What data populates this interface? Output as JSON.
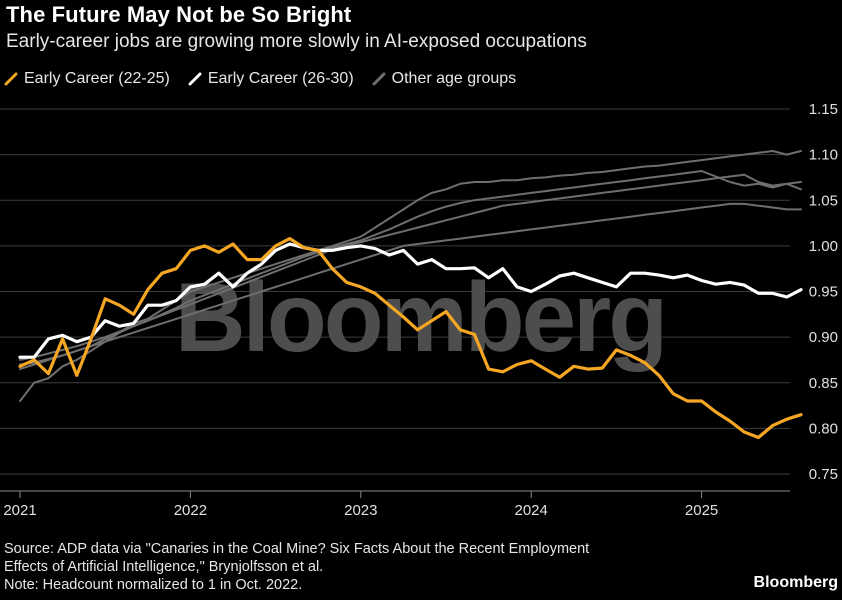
{
  "header": {
    "title": "The Future May Not be So Bright",
    "subtitle": "Early-career jobs are growing more slowly in AI-exposed occupations"
  },
  "colors": {
    "early_22_25": "#f5a623",
    "early_26_30": "#ffffff",
    "other": "#6e6e6e",
    "grid": "#3c3c3c",
    "watermark": "#4d4d4d"
  },
  "watermark": "Bloomberg",
  "footer": {
    "source_line1": "Source: ADP data via \"Canaries in the Coal Mine? Six Facts About the Recent Employment",
    "source_line2": "Effects of Artificial Intelligence,\" Brynjolfsson et al.",
    "note": "Note: Headcount normalized to 1 in Oct. 2022.",
    "brand": "Bloomberg"
  },
  "chart_data": {
    "type": "line",
    "title": "The Future May Not be So Bright",
    "subtitle": "Early-career jobs are growing more slowly in AI-exposed occupations",
    "xlabel": "",
    "ylabel": "",
    "x_start": "2021-01",
    "x_ticks": [
      "2021",
      "2022",
      "2023",
      "2024",
      "2025"
    ],
    "y_ticks": [
      "1.15",
      "1.10",
      "1.05",
      "1.00",
      "0.95",
      "0.90",
      "0.85",
      "0.80",
      "0.75"
    ],
    "ylim": [
      0.75,
      1.15
    ],
    "grid": true,
    "legend_position": "top-left",
    "series": [
      {
        "name": "Other age groups",
        "style": "other",
        "values": [
          0.83,
          0.85,
          0.855,
          0.868,
          0.875,
          0.885,
          0.895,
          0.905,
          0.915,
          0.92,
          0.93,
          0.94,
          0.95,
          0.955,
          0.96,
          0.965,
          0.97,
          0.975,
          0.98,
          0.985,
          0.99,
          0.995,
          1.0,
          1.005,
          1.01,
          1.02,
          1.03,
          1.04,
          1.05,
          1.058,
          1.062,
          1.068,
          1.07,
          1.07,
          1.072,
          1.072,
          1.074,
          1.075,
          1.077,
          1.078,
          1.08,
          1.081,
          1.083,
          1.085,
          1.087,
          1.088,
          1.09,
          1.092,
          1.094,
          1.096,
          1.098,
          1.1,
          1.102,
          1.104,
          1.1,
          1.104
        ]
      },
      {
        "name": "Other age groups",
        "style": "other",
        "values": [
          0.865,
          0.87,
          0.875,
          0.88,
          0.885,
          0.89,
          0.898,
          0.905,
          0.912,
          0.918,
          0.925,
          0.932,
          0.94,
          0.946,
          0.952,
          0.958,
          0.964,
          0.97,
          0.976,
          0.982,
          0.988,
          0.993,
          0.998,
          1.002,
          1.006,
          1.012,
          1.018,
          1.025,
          1.032,
          1.038,
          1.043,
          1.047,
          1.05,
          1.052,
          1.054,
          1.056,
          1.058,
          1.06,
          1.062,
          1.064,
          1.066,
          1.068,
          1.07,
          1.072,
          1.074,
          1.076,
          1.078,
          1.08,
          1.082,
          1.076,
          1.07,
          1.066,
          1.068,
          1.064,
          1.068,
          1.07
        ]
      },
      {
        "name": "Other age groups",
        "style": "other",
        "values": [
          0.875,
          0.878,
          0.882,
          0.886,
          0.89,
          0.895,
          0.9,
          0.906,
          0.912,
          0.918,
          0.924,
          0.93,
          0.936,
          0.942,
          0.948,
          0.954,
          0.96,
          0.966,
          0.972,
          0.978,
          0.984,
          0.99,
          0.996,
          1.0,
          1.004,
          1.008,
          1.012,
          1.016,
          1.02,
          1.024,
          1.028,
          1.032,
          1.036,
          1.04,
          1.044,
          1.046,
          1.048,
          1.05,
          1.052,
          1.054,
          1.056,
          1.058,
          1.06,
          1.062,
          1.064,
          1.066,
          1.068,
          1.07,
          1.072,
          1.074,
          1.076,
          1.078,
          1.07,
          1.066,
          1.068,
          1.062
        ]
      },
      {
        "name": "Other age groups",
        "style": "other",
        "values": [
          0.87,
          0.872,
          0.876,
          0.88,
          0.885,
          0.89,
          0.895,
          0.9,
          0.905,
          0.91,
          0.915,
          0.92,
          0.925,
          0.93,
          0.935,
          0.94,
          0.945,
          0.95,
          0.955,
          0.96,
          0.965,
          0.97,
          0.975,
          0.98,
          0.985,
          0.99,
          0.995,
          1.0,
          1.002,
          1.004,
          1.006,
          1.008,
          1.01,
          1.012,
          1.014,
          1.016,
          1.018,
          1.02,
          1.022,
          1.024,
          1.026,
          1.028,
          1.03,
          1.032,
          1.034,
          1.036,
          1.038,
          1.04,
          1.042,
          1.044,
          1.046,
          1.046,
          1.044,
          1.042,
          1.04,
          1.04
        ]
      },
      {
        "name": "Early Career (26-30)",
        "style": "early_26_30",
        "values": [
          0.878,
          0.878,
          0.898,
          0.902,
          0.895,
          0.9,
          0.918,
          0.912,
          0.915,
          0.935,
          0.935,
          0.94,
          0.955,
          0.958,
          0.97,
          0.955,
          0.97,
          0.98,
          0.995,
          1.002,
          0.998,
          0.995,
          0.995,
          0.998,
          1.0,
          0.997,
          0.99,
          0.995,
          0.98,
          0.985,
          0.975,
          0.975,
          0.976,
          0.965,
          0.975,
          0.955,
          0.95,
          0.958,
          0.967,
          0.97,
          0.965,
          0.96,
          0.955,
          0.97,
          0.97,
          0.968,
          0.965,
          0.968,
          0.962,
          0.958,
          0.96,
          0.957,
          0.948,
          0.948,
          0.944,
          0.952
        ]
      },
      {
        "name": "Early Career (22-25)",
        "style": "early_22_25",
        "values": [
          0.868,
          0.875,
          0.86,
          0.898,
          0.858,
          0.898,
          0.942,
          0.935,
          0.925,
          0.952,
          0.97,
          0.975,
          0.995,
          1.0,
          0.993,
          1.002,
          0.985,
          0.985,
          1.0,
          1.008,
          0.998,
          0.995,
          0.975,
          0.96,
          0.955,
          0.948,
          0.935,
          0.922,
          0.908,
          0.918,
          0.928,
          0.908,
          0.903,
          0.865,
          0.862,
          0.87,
          0.874,
          0.865,
          0.856,
          0.868,
          0.865,
          0.866,
          0.886,
          0.88,
          0.872,
          0.858,
          0.838,
          0.83,
          0.83,
          0.818,
          0.808,
          0.796,
          0.79,
          0.803,
          0.81,
          0.815
        ]
      }
    ]
  }
}
